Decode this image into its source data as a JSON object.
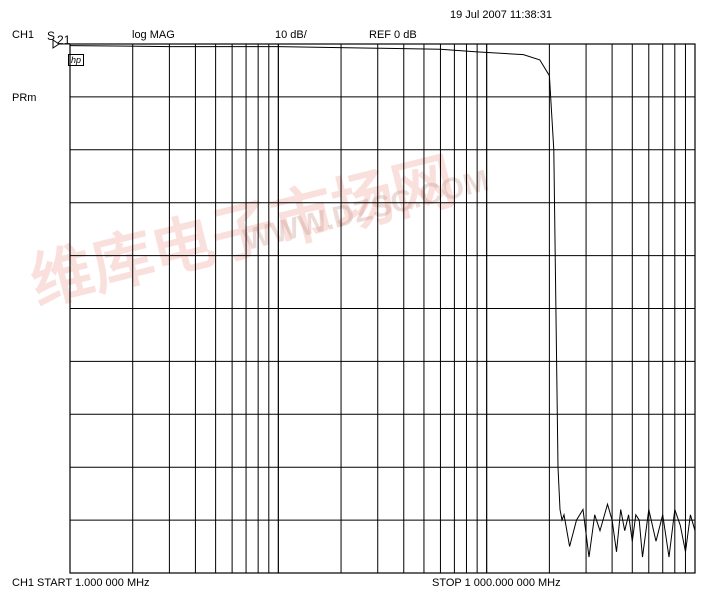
{
  "header": {
    "timestamp": "19 Jul 2007  11:38:31",
    "channel": "CH1",
    "param": "S",
    "param_sub": "21",
    "format": "log MAG",
    "scale": "10 dB/",
    "ref": "REF 0 dB",
    "side_label": "PRm",
    "logo": "hp"
  },
  "footer": {
    "start": "CH1 START   1.000 000 MHz",
    "stop": "STOP 1 000.000 000 MHz"
  },
  "watermark": {
    "cjk": "维库电子市场网",
    "url": "WWW.DZSC.COM"
  },
  "colors": {
    "trace": "#000000",
    "grid": "#000000",
    "watermark": "#e05a4a"
  },
  "chart_data": {
    "type": "line",
    "x_scale": "log",
    "x_unit": "MHz",
    "y_unit": "dB",
    "xlim": [
      1,
      1000
    ],
    "ylim": [
      -100,
      0
    ],
    "grid": true,
    "series": [
      {
        "x": [
          1,
          3,
          10,
          30,
          60,
          90,
          150,
          180,
          200,
          210,
          215,
          220,
          225,
          230,
          235,
          240,
          250,
          270,
          290,
          310,
          330,
          350,
          380,
          400,
          420,
          440,
          460,
          480,
          500,
          520,
          540,
          560,
          600,
          650,
          700,
          750,
          800,
          850,
          900,
          950,
          1000
        ],
        "y": [
          -0.3,
          -0.5,
          -0.5,
          -0.8,
          -1.0,
          -1.5,
          -2.0,
          -3.0,
          -6.0,
          -20.0,
          -50.0,
          -80.0,
          -88.0,
          -90.0,
          -89.0,
          -91.0,
          -95.0,
          -90.0,
          -88.0,
          -97.0,
          -89.0,
          -92.0,
          -87.0,
          -90.0,
          -96.0,
          -88.0,
          -92.0,
          -89.0,
          -94.0,
          -89.0,
          -90.0,
          -97.0,
          -88.0,
          -94.0,
          -89.0,
          -97.0,
          -88.0,
          -91.0,
          -96.0,
          -89.0,
          -92.0
        ]
      }
    ]
  }
}
